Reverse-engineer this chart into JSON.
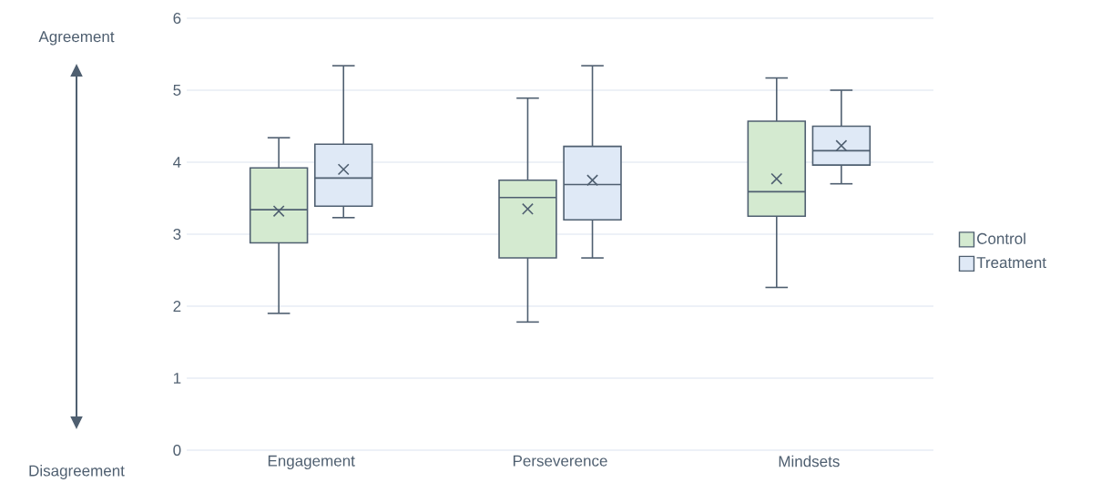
{
  "chart_data": {
    "type": "box",
    "categories": [
      "Engagement",
      "Perseverence",
      "Mindsets"
    ],
    "series": [
      {
        "name": "Control",
        "color": "#d4ead0",
        "boxes": [
          {
            "low": 1.9,
            "q1": 2.88,
            "median": 3.34,
            "q3": 3.92,
            "high": 4.34,
            "mean": 3.32
          },
          {
            "low": 1.78,
            "q1": 2.67,
            "median": 3.51,
            "q3": 3.75,
            "high": 4.89,
            "mean": 3.35
          },
          {
            "low": 2.26,
            "q1": 3.25,
            "median": 3.59,
            "q3": 4.57,
            "high": 5.17,
            "mean": 3.77
          }
        ]
      },
      {
        "name": "Treatment",
        "color": "#dfe9f6",
        "boxes": [
          {
            "low": 3.23,
            "q1": 3.39,
            "median": 3.78,
            "q3": 4.25,
            "high": 5.34,
            "mean": 3.9
          },
          {
            "low": 2.67,
            "q1": 3.2,
            "median": 3.69,
            "q3": 4.22,
            "high": 5.34,
            "mean": 3.75
          },
          {
            "low": 3.7,
            "q1": 3.96,
            "median": 4.16,
            "q3": 4.5,
            "high": 5.0,
            "mean": 4.23
          }
        ]
      }
    ],
    "ylim": [
      0,
      6
    ],
    "yticks": [
      0,
      1,
      2,
      3,
      4,
      5,
      6
    ],
    "grid": "y",
    "legend": "right",
    "annotations": [
      "Agreement",
      "Disagreement"
    ]
  }
}
